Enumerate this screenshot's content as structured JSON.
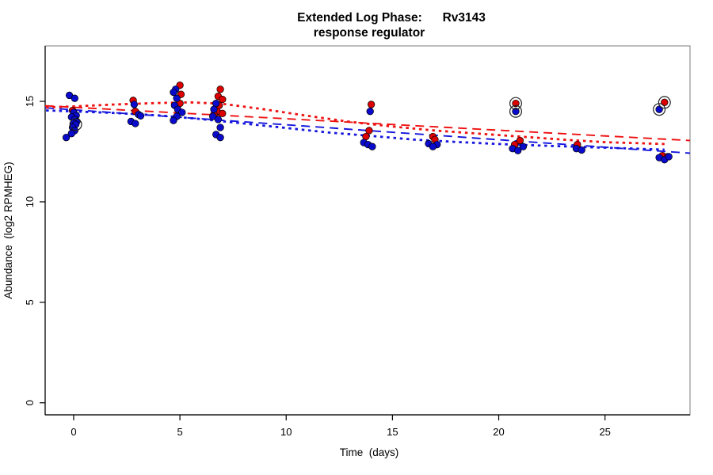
{
  "chart_data": {
    "type": "scatter",
    "title": "Extended Log Phase:      Rv3143",
    "subtitle": "response regulator",
    "xlabel": "Time  (days)",
    "ylabel": "Abundance  (log2 RPMHEG)",
    "xlim": [
      -1.34,
      29.0
    ],
    "ylim": [
      -0.6,
      17.76
    ],
    "xticks": [
      0,
      5,
      10,
      15,
      20,
      25
    ],
    "yticks": [
      0,
      5,
      10,
      15
    ],
    "grid": false,
    "legend": "none",
    "colors": {
      "red": "#dd0000",
      "blue": "#0a0acc",
      "box": "#999999",
      "axis": "#000000",
      "ring": "#222222"
    },
    "series": [
      {
        "name": "red-points",
        "color": "#dd0000",
        "points": [
          [
            -0.05,
            14.55
          ],
          [
            2.8,
            15.05
          ],
          [
            2.9,
            14.5
          ],
          [
            5.0,
            15.8
          ],
          [
            5.05,
            15.35
          ],
          [
            5.0,
            14.9
          ],
          [
            6.9,
            15.6
          ],
          [
            6.8,
            15.25
          ],
          [
            7.0,
            15.1
          ],
          [
            6.85,
            14.8
          ],
          [
            6.75,
            14.5
          ],
          [
            7.0,
            14.4
          ],
          [
            6.6,
            14.35
          ],
          [
            14.0,
            14.85
          ],
          [
            13.9,
            13.55
          ],
          [
            13.75,
            13.25
          ],
          [
            16.9,
            13.25
          ],
          [
            17.0,
            13.1
          ],
          [
            20.8,
            14.9
          ],
          [
            21.0,
            13.05
          ],
          [
            20.75,
            12.85
          ],
          [
            23.7,
            12.85
          ],
          [
            27.8,
            14.95
          ],
          [
            27.7,
            12.3
          ],
          [
            27.95,
            12.25
          ]
        ]
      },
      {
        "name": "blue-points",
        "color": "#0a0acc",
        "points": [
          [
            -0.2,
            15.3
          ],
          [
            0.05,
            15.15
          ],
          [
            0.0,
            14.45
          ],
          [
            0.12,
            14.3
          ],
          [
            -0.1,
            14.22
          ],
          [
            0.05,
            14.1
          ],
          [
            0.15,
            14.0
          ],
          [
            0.0,
            13.92
          ],
          [
            0.1,
            13.85
          ],
          [
            -0.05,
            13.7
          ],
          [
            0.05,
            13.55
          ],
          [
            -0.1,
            13.4
          ],
          [
            -0.35,
            13.2
          ],
          [
            2.85,
            14.85
          ],
          [
            3.05,
            14.35
          ],
          [
            3.15,
            14.28
          ],
          [
            2.7,
            14.0
          ],
          [
            2.9,
            13.9
          ],
          [
            4.8,
            15.6
          ],
          [
            4.7,
            15.45
          ],
          [
            4.85,
            15.15
          ],
          [
            4.75,
            14.8
          ],
          [
            4.9,
            14.6
          ],
          [
            5.1,
            14.45
          ],
          [
            4.85,
            14.25
          ],
          [
            4.7,
            14.05
          ],
          [
            6.7,
            14.9
          ],
          [
            6.6,
            14.6
          ],
          [
            6.55,
            14.25
          ],
          [
            6.8,
            14.1
          ],
          [
            6.9,
            13.7
          ],
          [
            6.7,
            13.35
          ],
          [
            6.9,
            13.2
          ],
          [
            13.95,
            14.5
          ],
          [
            13.65,
            12.95
          ],
          [
            13.85,
            12.85
          ],
          [
            14.05,
            12.75
          ],
          [
            16.7,
            12.9
          ],
          [
            17.1,
            12.85
          ],
          [
            16.9,
            12.75
          ],
          [
            20.8,
            14.5
          ],
          [
            20.65,
            12.65
          ],
          [
            20.9,
            12.55
          ],
          [
            21.15,
            12.75
          ],
          [
            23.65,
            12.65
          ],
          [
            23.9,
            12.58
          ],
          [
            27.55,
            14.6
          ],
          [
            27.55,
            12.2
          ],
          [
            27.8,
            12.1
          ],
          [
            28.0,
            12.25
          ]
        ]
      },
      {
        "name": "outlier-rings",
        "color": "none",
        "points": [
          [
            0.1,
            13.85
          ],
          [
            20.8,
            14.9
          ],
          [
            20.8,
            14.5
          ],
          [
            27.8,
            14.95
          ],
          [
            27.55,
            14.6
          ]
        ]
      }
    ],
    "lines": [
      {
        "name": "red-linear-fit-dashed",
        "color": "#ee1111",
        "dash": "11,7",
        "width": 1.9,
        "points": [
          [
            -1.34,
            14.78
          ],
          [
            29.0,
            13.05
          ]
        ]
      },
      {
        "name": "blue-linear-fit-dashed",
        "color": "#1515dd",
        "dash": "11,7",
        "width": 1.9,
        "points": [
          [
            -1.34,
            14.68
          ],
          [
            29.0,
            12.42
          ]
        ]
      },
      {
        "name": "red-lowess-dotted",
        "color": "#ee1111",
        "dash": "3.5,4.8",
        "width": 2.8,
        "points": [
          [
            -1.3,
            14.7
          ],
          [
            0,
            14.75
          ],
          [
            2,
            14.85
          ],
          [
            4,
            14.92
          ],
          [
            5.5,
            14.95
          ],
          [
            7,
            14.88
          ],
          [
            9,
            14.6
          ],
          [
            11,
            14.28
          ],
          [
            13,
            13.98
          ],
          [
            15,
            13.75
          ],
          [
            17,
            13.55
          ],
          [
            19,
            13.4
          ],
          [
            21,
            13.25
          ],
          [
            23,
            13.1
          ],
          [
            25,
            12.97
          ],
          [
            27.8,
            12.88
          ]
        ]
      },
      {
        "name": "blue-lowess-dotted",
        "color": "#1515dd",
        "dash": "3.5,4.8",
        "width": 2.8,
        "points": [
          [
            -1.3,
            14.55
          ],
          [
            0,
            14.5
          ],
          [
            2,
            14.42
          ],
          [
            4,
            14.3
          ],
          [
            6,
            14.12
          ],
          [
            8,
            13.9
          ],
          [
            10,
            13.68
          ],
          [
            12,
            13.45
          ],
          [
            14,
            13.28
          ],
          [
            16,
            13.1
          ],
          [
            18,
            12.98
          ],
          [
            20,
            12.88
          ],
          [
            22,
            12.8
          ],
          [
            24,
            12.73
          ],
          [
            26,
            12.66
          ],
          [
            27.8,
            12.6
          ]
        ]
      }
    ]
  }
}
